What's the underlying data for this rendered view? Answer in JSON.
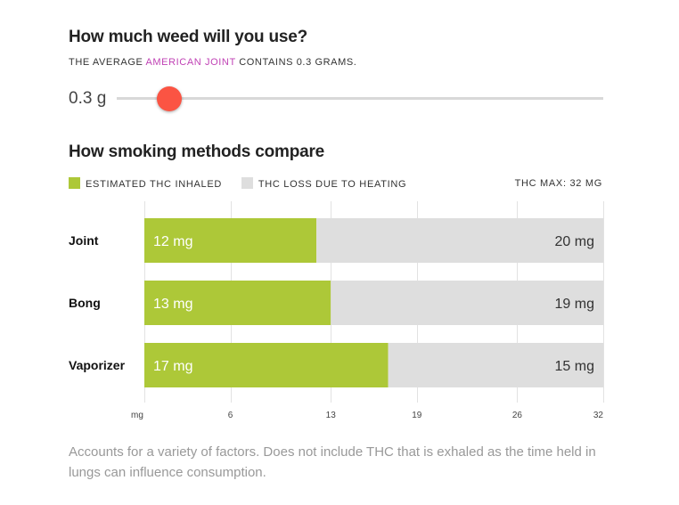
{
  "header": {
    "title": "How much weed will you use?",
    "note_before": "THE AVERAGE ",
    "note_link": "AMERICAN JOINT",
    "note_after": " CONTAINS 0.3 GRAMS."
  },
  "slider": {
    "value_label": "0.3 g",
    "value": 0.3
  },
  "compare": {
    "title": "How smoking methods compare",
    "legend_inhaled": "ESTIMATED THC INHALED",
    "legend_loss": "THC LOSS DUE TO HEATING",
    "thc_max": "THC MAX: 32 MG"
  },
  "colors": {
    "inhaled": "#adc838",
    "loss": "#dedede",
    "thumb": "#fb5443",
    "link": "#c042b5"
  },
  "chart_data": {
    "type": "bar",
    "orientation": "horizontal",
    "stacked": true,
    "categories": [
      "Joint",
      "Bong",
      "Vaporizer"
    ],
    "series": [
      {
        "name": "ESTIMATED THC INHALED",
        "values": [
          12,
          13,
          17
        ],
        "labels": [
          "12 mg",
          "13 mg",
          "17 mg"
        ]
      },
      {
        "name": "THC LOSS DUE TO HEATING",
        "values": [
          20,
          19,
          15
        ],
        "labels": [
          "20 mg",
          "19 mg",
          "15 mg"
        ]
      }
    ],
    "xlim": [
      0,
      32
    ],
    "ticks": [
      {
        "value": 0,
        "label": "mg"
      },
      {
        "value": 6,
        "label": "6"
      },
      {
        "value": 13,
        "label": "13"
      },
      {
        "value": 19,
        "label": "19"
      },
      {
        "value": 26,
        "label": "26"
      },
      {
        "value": 32,
        "label": "32"
      }
    ],
    "grid": true
  },
  "footnote": "Accounts for a variety of factors. Does not include THC that is exhaled as the time held in lungs can influence consumption."
}
